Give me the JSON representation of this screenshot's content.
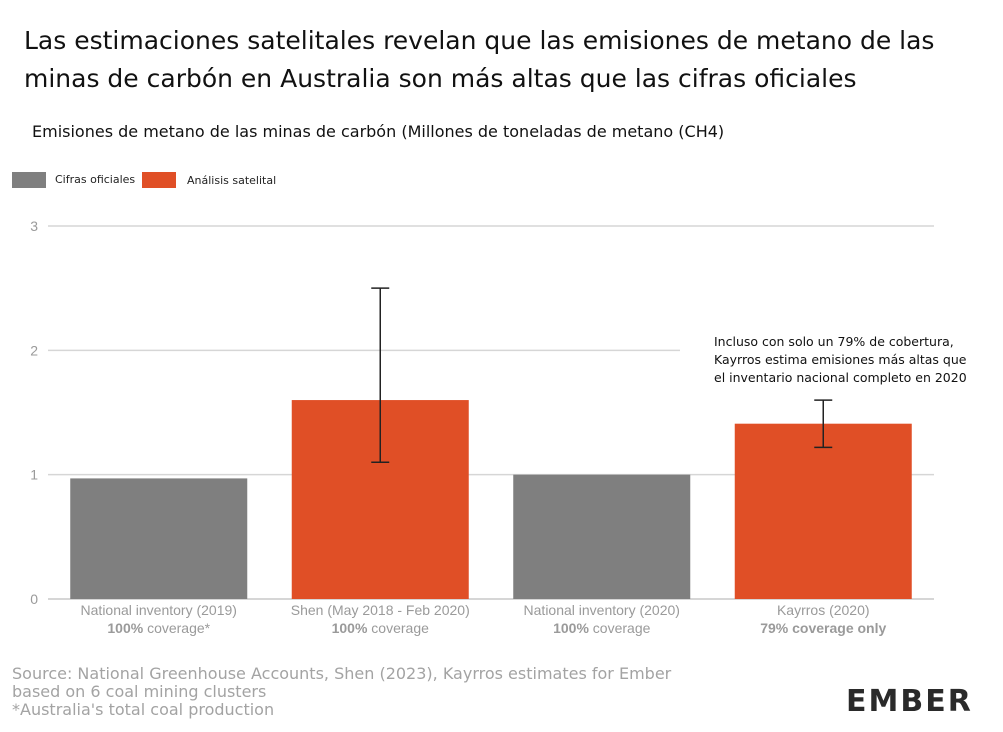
{
  "title": "Las estimaciones satelitales revelan que las emisiones de metano de las minas de carbón en Australia son más altas que las cifras oficiales",
  "subtitle": "Emisiones de metano de las minas de carbón (Millones de toneladas de metano (CH4)",
  "legend": [
    {
      "label": "Cifras oficiales",
      "color": "#7f7f7f"
    },
    {
      "label": "Análisis satelital",
      "color": "#e04f26"
    }
  ],
  "source": [
    "Source: National Greenhouse Accounts, Shen (2023), Kayrros estimates for Ember",
    "based on 6 coal mining clusters",
    "*Australia's total coal production"
  ],
  "logo": "EMBER",
  "chart_data": {
    "type": "bar",
    "ylabel": "",
    "ylim": [
      0,
      3
    ],
    "yticks": [
      0,
      1,
      2,
      3
    ],
    "grid": true,
    "categories": [
      {
        "label": "National inventory (2019)",
        "coverage_bold": "100%",
        "coverage_rest": " coverage*",
        "value": 0.97,
        "color": "#7f7f7f"
      },
      {
        "label": "Shen (May 2018 - Feb 2020)",
        "coverage_bold": "100%",
        "coverage_rest": " coverage",
        "value": 1.6,
        "error_low": 1.1,
        "error_high": 2.5,
        "color": "#e04f26"
      },
      {
        "label": "National inventory (2020)",
        "coverage_bold": "100%",
        "coverage_rest": " coverage",
        "value": 1.0,
        "color": "#7f7f7f"
      },
      {
        "label": "Kayrros (2020)",
        "coverage_bold": "79% coverage only",
        "coverage_rest": "",
        "value": 1.41,
        "error_low": 1.22,
        "error_high": 1.6,
        "color": "#e04f26"
      }
    ],
    "annotation": [
      "Incluso con solo un 79% de cobertura,",
      "Kayrros estima emisiones más altas que",
      "el inventario nacional completo en 2020"
    ]
  }
}
